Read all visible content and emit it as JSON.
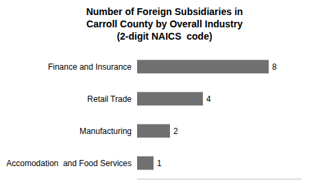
{
  "chart_data": {
    "type": "bar",
    "orientation": "horizontal",
    "title": "Number of Foreign Subsidiaries in\nCarroll County by Overall Industry\n(2-digit NAICS  code)",
    "categories": [
      "Accomodation  and Food Services",
      "Manufacturing",
      "Retail Trade",
      "Finance and Insurance"
    ],
    "values": [
      1,
      2,
      4,
      8
    ],
    "color": "#707070",
    "xlim": [
      0,
      10
    ],
    "data_labels": true,
    "tick_labels": "y",
    "grid": false
  }
}
